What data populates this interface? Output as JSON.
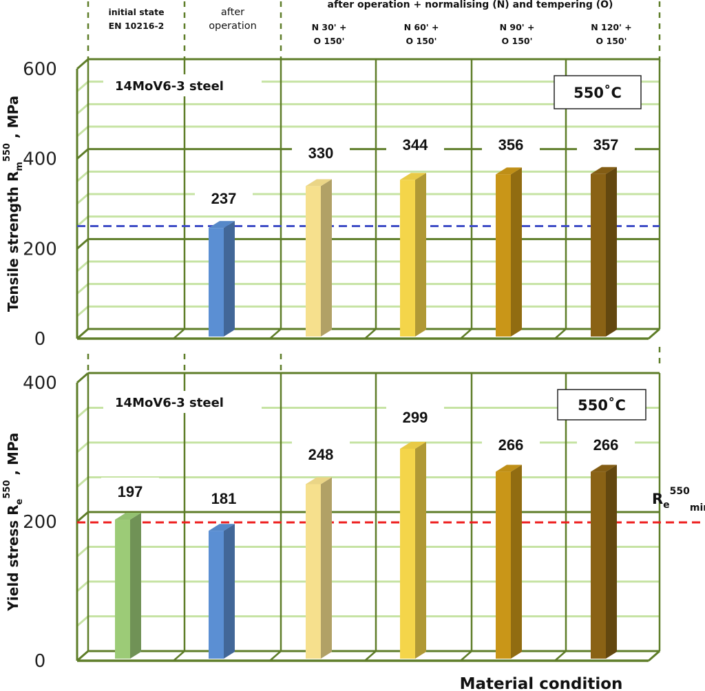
{
  "header": {
    "col1": [
      "initial state",
      "EN 10216-2"
    ],
    "col2": [
      "after",
      "operation"
    ],
    "group": "after operation + normalising (N) and tempering (O)",
    "col3": [
      "N 30' +",
      "O 150'"
    ],
    "col4": [
      "N 60' +",
      "O 150'"
    ],
    "col5": [
      "N 90' +",
      "O 150'"
    ],
    "col6": [
      "N 120' +",
      "O 150'"
    ]
  },
  "colors": {
    "frame": "#5e7d28",
    "grid": "#c6e3a3",
    "blue_ref": "#3e4cc6",
    "red_ref": "#ee1c1c",
    "c_initial": "#9ccb77",
    "c_after": "#5b8fd3",
    "c_n30": "#f6e08d",
    "c_n60": "#f4d54a",
    "c_n90": "#c99618",
    "c_n120": "#8a6215"
  },
  "chart_data": [
    {
      "type": "bar",
      "categories": [
        "initial state EN 10216-2",
        "after operation",
        "N 30' + O 150'",
        "N 60' + O 150'",
        "N 90' + O 150'",
        "N 120' + O 150'"
      ],
      "values": [
        null,
        237,
        330,
        344,
        356,
        357
      ],
      "value_labels": [
        "",
        "237",
        "330",
        "344",
        "356",
        "357"
      ],
      "ylabel_parts": {
        "base": "Tensile strength R",
        "sub": "m",
        "sup": "550",
        "tail": " , MPa"
      },
      "ylim": [
        0,
        600
      ],
      "yticks": [
        "0",
        "200",
        "400",
        "600"
      ],
      "reference_line": 235,
      "annotation": "14MoV6-3 steel",
      "temperature": "550˚C",
      "grid": true
    },
    {
      "type": "bar",
      "categories": [
        "initial state EN 10216-2",
        "after operation",
        "N 30' + O 150'",
        "N 60' + O 150'",
        "N 90' + O 150'",
        "N 120' + O 150'"
      ],
      "values": [
        197,
        181,
        248,
        299,
        266,
        266
      ],
      "value_labels": [
        "197",
        "181",
        "248",
        "299",
        "266",
        "266"
      ],
      "ylabel_parts": {
        "base": "Yield stress R",
        "sub": "e",
        "sup": "550",
        "tail": " , MPa"
      },
      "xlabel": "Material condition",
      "ylim": [
        0,
        400
      ],
      "yticks": [
        "0",
        "200",
        "400"
      ],
      "reference_line": 195,
      "reference_label": {
        "base": "R",
        "sub1": "e",
        "sup": "550",
        "sub2": "min"
      },
      "annotation": "14MoV6-3 steel",
      "temperature": "550˚C",
      "grid": true
    }
  ]
}
